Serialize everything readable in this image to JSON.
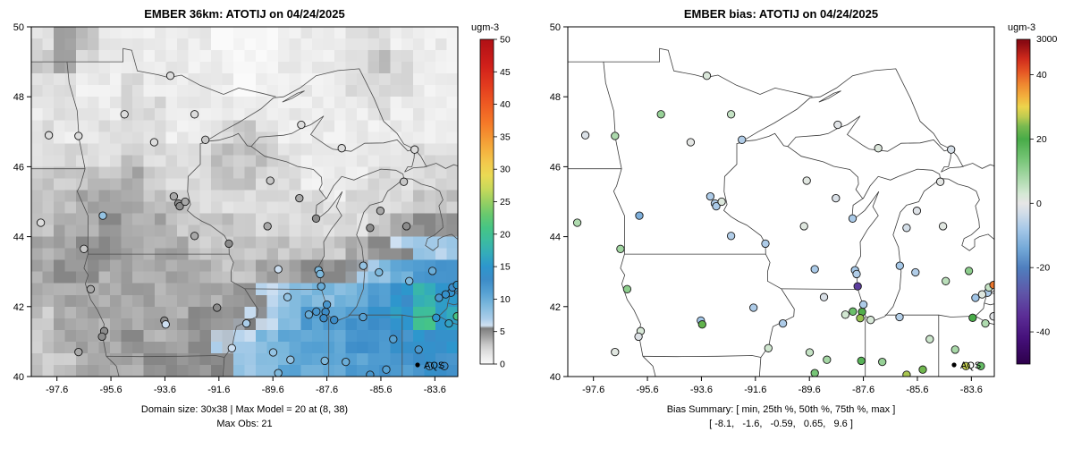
{
  "panels": {
    "left": {
      "title": "EMBER 36km: ATOTIJ on 04/24/2025",
      "colorbar": {
        "title": "ugm-3",
        "ticks": [
          0,
          5,
          10,
          15,
          20,
          25,
          30,
          35,
          40,
          45,
          50
        ],
        "range": [
          0,
          50
        ]
      },
      "captions": [
        "Domain size: 30x38 | Max Model = 20 at (8, 38)",
        "Max Obs: 21"
      ],
      "legend_label": "AQS"
    },
    "right": {
      "title": "EMBER bias: ATOTIJ on 04/24/2025",
      "colorbar": {
        "title": "ugm-3",
        "top_label": "3000",
        "ticks": [
          40,
          20,
          0,
          -20,
          -40
        ],
        "range": [
          -50,
          51
        ]
      },
      "captions": [
        "Bias Summary: [ min, 25th %, 50th %, 75th %, max ]",
        "[ -8.1,   -1.6,   -0.59,   0.65,   9.6 ]"
      ],
      "legend_label": "AQS"
    }
  },
  "axes": {
    "x_ticks": [
      "-97.6",
      "-95.6",
      "-93.6",
      "-91.6",
      "-89.6",
      "-87.6",
      "-85.6",
      "-83.6"
    ],
    "y_ticks": [
      "40",
      "42",
      "44",
      "46",
      "48",
      "50"
    ],
    "lon_range": [
      -98.55,
      -82.75
    ],
    "lat_range": [
      40,
      50
    ]
  },
  "chart_data": [
    {
      "type": "heatmap",
      "title": "EMBER 36km: ATOTIJ on 04/24/2025",
      "units": "ugm-3",
      "colorbar_ticks": [
        0,
        5,
        10,
        15,
        20,
        25,
        30,
        35,
        40,
        45,
        50
      ],
      "colorbar_range": [
        0,
        50
      ],
      "summary": {
        "domain_size": "30x38",
        "max_model": 20,
        "max_model_at": "(8, 38)",
        "max_obs": 21
      },
      "grid": {
        "ncols": 19,
        "nrows": 15,
        "lon_range": [
          -98.55,
          -82.75
        ],
        "lat_range": [
          50,
          40
        ],
        "values": [
          [
            2,
            4,
            3,
            1,
            1,
            1,
            1,
            1,
            0,
            0,
            0,
            1,
            1,
            1,
            2,
            2,
            1,
            1,
            1
          ],
          [
            3,
            4,
            2,
            1,
            1,
            1,
            1,
            1,
            1,
            0,
            0,
            1,
            1,
            1,
            2,
            3,
            2,
            1,
            1
          ],
          [
            2,
            2,
            1,
            1,
            2,
            1,
            1,
            1,
            1,
            0,
            1,
            1,
            1,
            1,
            2,
            2,
            2,
            1,
            1
          ],
          [
            1,
            2,
            1,
            1,
            2,
            2,
            1,
            1,
            1,
            1,
            1,
            1,
            1,
            1,
            1,
            2,
            1,
            1,
            1
          ],
          [
            2,
            1,
            1,
            2,
            2,
            2,
            1,
            1,
            2,
            3,
            2,
            1,
            1,
            1,
            1,
            1,
            1,
            1,
            1
          ],
          [
            2,
            2,
            2,
            2,
            3,
            2,
            2,
            2,
            3,
            3,
            3,
            2,
            1,
            1,
            1,
            1,
            1,
            2,
            2
          ],
          [
            3,
            3,
            3,
            3,
            4,
            3,
            2,
            2,
            3,
            3,
            2,
            2,
            1,
            1,
            1,
            2,
            2,
            2,
            2
          ],
          [
            3,
            3,
            4,
            4,
            4,
            3,
            3,
            2,
            2,
            2,
            2,
            2,
            2,
            1,
            2,
            2,
            2,
            3,
            3
          ],
          [
            3,
            4,
            4,
            5,
            4,
            4,
            3,
            3,
            3,
            3,
            2,
            2,
            2,
            2,
            2,
            3,
            4,
            5,
            5
          ],
          [
            4,
            4,
            5,
            5,
            4,
            4,
            4,
            3,
            3,
            3,
            3,
            3,
            3,
            3,
            4,
            5,
            6,
            7,
            7
          ],
          [
            4,
            5,
            5,
            4,
            4,
            4,
            4,
            4,
            3,
            3,
            4,
            4,
            5,
            5,
            6,
            8,
            10,
            12,
            12
          ],
          [
            4,
            4,
            4,
            4,
            4,
            4,
            4,
            4,
            4,
            5,
            6,
            8,
            9,
            9,
            10,
            12,
            14,
            18,
            15
          ],
          [
            3,
            4,
            4,
            4,
            4,
            4,
            4,
            5,
            5,
            6,
            6,
            8,
            11,
            11,
            12,
            13,
            15,
            20,
            16
          ],
          [
            3,
            4,
            4,
            4,
            5,
            4,
            4,
            5,
            6,
            7,
            9,
            10,
            11,
            11,
            12,
            12,
            13,
            14,
            14
          ],
          [
            3,
            3,
            4,
            4,
            4,
            5,
            5,
            5,
            6,
            8,
            9,
            10,
            10,
            11,
            11,
            12,
            12,
            13,
            13
          ]
        ]
      },
      "stations": {
        "legend": "AQS",
        "format": [
          "lon",
          "lat",
          "value_ugm3"
        ],
        "values": [
          [
            -97.9,
            46.9,
            2
          ],
          [
            -98.2,
            44.4,
            2
          ],
          [
            -96.8,
            40.7,
            4
          ],
          [
            -96.8,
            46.88,
            2
          ],
          [
            -95.1,
            47.5,
            2
          ],
          [
            -93.4,
            48.6,
            2
          ],
          [
            -92.5,
            47.5,
            2
          ],
          [
            -94.0,
            46.7,
            2
          ],
          [
            -93.27,
            45.15,
            4
          ],
          [
            -93.1,
            44.95,
            5
          ],
          [
            -93.05,
            44.87,
            5
          ],
          [
            -92.85,
            45.0,
            4
          ],
          [
            -95.9,
            44.6,
            8
          ],
          [
            -92.5,
            44.02,
            4
          ],
          [
            -96.6,
            43.65,
            3
          ],
          [
            -96.35,
            42.5,
            4
          ],
          [
            -95.85,
            41.3,
            5
          ],
          [
            -95.93,
            41.14,
            5
          ],
          [
            -93.62,
            41.6,
            5
          ],
          [
            -93.57,
            41.49,
            6
          ],
          [
            -91.67,
            41.97,
            5
          ],
          [
            -90.58,
            41.52,
            7
          ],
          [
            -91.12,
            40.81,
            6
          ],
          [
            -92.1,
            46.77,
            3
          ],
          [
            -89.7,
            45.6,
            3
          ],
          [
            -88.0,
            44.52,
            5
          ],
          [
            -89.8,
            44.3,
            4
          ],
          [
            -91.23,
            43.8,
            5
          ],
          [
            -89.4,
            43.07,
            6
          ],
          [
            -87.91,
            43.04,
            9
          ],
          [
            -87.85,
            42.93,
            9
          ],
          [
            -87.81,
            42.58,
            10
          ],
          [
            -89.06,
            42.27,
            8
          ],
          [
            -87.99,
            41.86,
            12
          ],
          [
            -87.65,
            41.85,
            13
          ],
          [
            -87.6,
            42.06,
            12
          ],
          [
            -87.72,
            41.67,
            13
          ],
          [
            -88.27,
            41.77,
            10
          ],
          [
            -89.59,
            40.69,
            8
          ],
          [
            -88.95,
            40.48,
            8
          ],
          [
            -87.68,
            40.45,
            9
          ],
          [
            -89.4,
            40.1,
            9
          ],
          [
            -87.33,
            41.62,
            13
          ],
          [
            -86.26,
            41.7,
            11
          ],
          [
            -85.14,
            41.07,
            11
          ],
          [
            -86.9,
            40.42,
            10
          ],
          [
            -85.4,
            40.2,
            11
          ],
          [
            -86.0,
            40.05,
            12
          ],
          [
            -88.55,
            47.2,
            2
          ],
          [
            -87.05,
            46.53,
            2
          ],
          [
            -84.35,
            46.49,
            2
          ],
          [
            -85.62,
            44.74,
            4
          ],
          [
            -84.75,
            45.57,
            3
          ],
          [
            -86.25,
            43.17,
            8
          ],
          [
            -85.67,
            42.98,
            9
          ],
          [
            -84.55,
            42.73,
            9
          ],
          [
            -83.69,
            43.02,
            10
          ],
          [
            -83.0,
            42.4,
            14
          ],
          [
            -83.2,
            42.35,
            14
          ],
          [
            -82.95,
            42.55,
            13
          ],
          [
            -83.45,
            42.25,
            12
          ],
          [
            -82.78,
            42.62,
            15
          ],
          [
            -83.55,
            41.68,
            15
          ],
          [
            -83.08,
            41.52,
            16
          ],
          [
            -84.2,
            40.77,
            12
          ],
          [
            -83.8,
            40.3,
            12
          ],
          [
            -83.25,
            40.3,
            13
          ],
          [
            -82.78,
            41.72,
            21
          ],
          [
            -88.62,
            45.1,
            4
          ],
          [
            -84.65,
            44.3,
            5
          ],
          [
            -86.0,
            44.25,
            5
          ]
        ]
      }
    },
    {
      "type": "scatter",
      "title": "EMBER bias: ATOTIJ on 04/24/2025",
      "units": "ugm-3",
      "colorbar_ticks": [
        40,
        20,
        0,
        -20,
        -40
      ],
      "colorbar_top_label": "3000",
      "colorbar_range": [
        -50,
        51
      ],
      "bias_summary": {
        "min": -8.1,
        "p25": -1.6,
        "median": -0.59,
        "p75": 0.65,
        "max": 9.6
      },
      "stations": {
        "legend": "AQS",
        "format": [
          "lon",
          "lat",
          "bias_ugm3"
        ],
        "values": [
          [
            -97.9,
            46.9,
            -0.4
          ],
          [
            -98.2,
            44.4,
            1.8
          ],
          [
            -96.8,
            40.7,
            0.2
          ],
          [
            -96.8,
            46.88,
            1.9
          ],
          [
            -95.1,
            47.5,
            2.5
          ],
          [
            -93.4,
            48.6,
            0.5
          ],
          [
            -92.5,
            47.5,
            1.2
          ],
          [
            -94.0,
            46.7,
            0.1
          ],
          [
            -93.27,
            45.15,
            -1.8
          ],
          [
            -93.1,
            44.95,
            -1.7
          ],
          [
            -93.05,
            44.87,
            -1.9
          ],
          [
            -92.85,
            45.0,
            0.4
          ],
          [
            -95.9,
            44.6,
            -3.2
          ],
          [
            -92.5,
            44.02,
            -1.7
          ],
          [
            -96.6,
            43.65,
            2.2
          ],
          [
            -96.35,
            42.5,
            2.8
          ],
          [
            -95.85,
            41.3,
            0.6
          ],
          [
            -95.93,
            41.14,
            -0.3
          ],
          [
            -93.62,
            41.6,
            -2.1
          ],
          [
            -93.57,
            41.49,
            5.5
          ],
          [
            -91.67,
            41.97,
            -1.8
          ],
          [
            -90.58,
            41.52,
            -1.8
          ],
          [
            -91.12,
            40.81,
            0.9
          ],
          [
            -92.1,
            46.77,
            -1.7
          ],
          [
            -89.7,
            45.6,
            0.2
          ],
          [
            -88.0,
            44.52,
            -1.9
          ],
          [
            -89.8,
            44.3,
            0.3
          ],
          [
            -91.23,
            43.8,
            -1.8
          ],
          [
            -89.4,
            43.07,
            -1.9
          ],
          [
            -87.91,
            43.04,
            -2.0
          ],
          [
            -87.85,
            42.93,
            -1.7
          ],
          [
            -87.81,
            42.58,
            -8.1
          ],
          [
            -89.06,
            42.27,
            -0.5
          ],
          [
            -87.99,
            41.86,
            3.8
          ],
          [
            -87.65,
            41.85,
            5.2
          ],
          [
            -87.6,
            42.06,
            -1.8
          ],
          [
            -87.72,
            41.67,
            6.3
          ],
          [
            -88.27,
            41.77,
            0.8
          ],
          [
            -89.59,
            40.69,
            1.2
          ],
          [
            -88.95,
            40.48,
            2.1
          ],
          [
            -87.68,
            40.45,
            4.5
          ],
          [
            -89.4,
            40.1,
            3.4
          ],
          [
            -87.33,
            41.62,
            0.6
          ],
          [
            -86.26,
            41.7,
            -1.6
          ],
          [
            -85.14,
            41.07,
            1.0
          ],
          [
            -86.9,
            40.42,
            2.5
          ],
          [
            -85.4,
            40.2,
            5.8
          ],
          [
            -86.0,
            40.05,
            6.5
          ],
          [
            -88.55,
            47.2,
            -0.2
          ],
          [
            -87.05,
            46.53,
            0.4
          ],
          [
            -84.35,
            46.49,
            -0.6
          ],
          [
            -85.62,
            44.74,
            -0.3
          ],
          [
            -84.75,
            45.57,
            0.1
          ],
          [
            -86.25,
            43.17,
            -2.0
          ],
          [
            -85.67,
            42.98,
            -1.7
          ],
          [
            -84.55,
            42.73,
            1.5
          ],
          [
            -83.69,
            43.02,
            2.8
          ],
          [
            -83.0,
            42.4,
            -1.8
          ],
          [
            -83.2,
            42.35,
            0.3
          ],
          [
            -82.95,
            42.55,
            1.2
          ],
          [
            -83.45,
            42.25,
            -2.2
          ],
          [
            -82.78,
            42.62,
            9.6
          ],
          [
            -83.55,
            41.68,
            5.0
          ],
          [
            -83.08,
            41.52,
            1.8
          ],
          [
            -84.2,
            40.77,
            2.0
          ],
          [
            -83.8,
            40.3,
            6.8
          ],
          [
            -83.25,
            40.3,
            4.0
          ],
          [
            -82.78,
            41.72,
            -0.2
          ],
          [
            -88.62,
            45.1,
            -0.5
          ],
          [
            -84.65,
            44.3,
            0.2
          ],
          [
            -86.0,
            44.25,
            -0.7
          ]
        ]
      }
    }
  ]
}
